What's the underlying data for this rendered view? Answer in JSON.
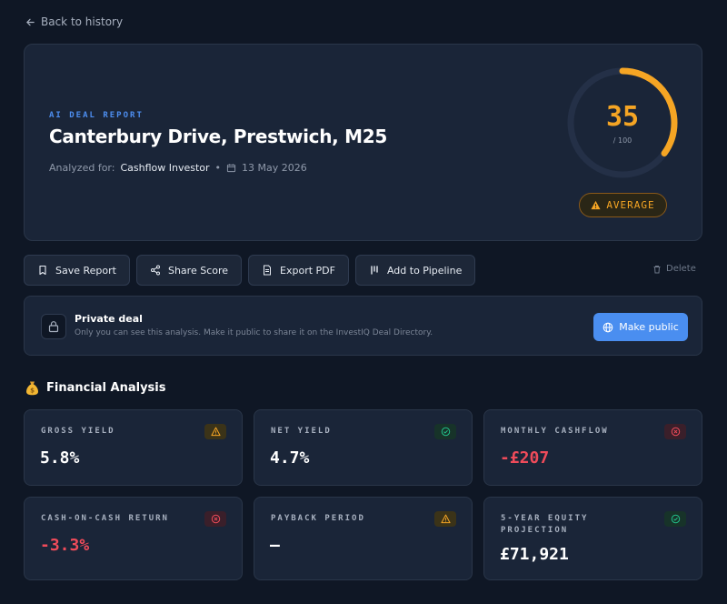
{
  "nav": {
    "back_label": "Back to history"
  },
  "report": {
    "eyebrow": "AI DEAL REPORT",
    "title": "Canterbury Drive, Prestwich, M25",
    "analyzed_for_label": "Analyzed for:",
    "investor_type": "Cashflow Investor",
    "date": "13 May 2026"
  },
  "score": {
    "value": "35",
    "max_label": "/ 100",
    "fraction": 0.35,
    "rating": "AVERAGE",
    "color": "#f5a524"
  },
  "toolbar": {
    "save": "Save Report",
    "share": "Share Score",
    "export": "Export PDF",
    "pipeline": "Add to Pipeline",
    "delete": "Delete"
  },
  "privacy": {
    "title": "Private deal",
    "description": "Only you can see this analysis. Make it public to share it on the InvestIQ Deal Directory.",
    "button": "Make public"
  },
  "financial": {
    "title": "Financial Analysis",
    "cards": [
      {
        "label": "GROSS YIELD",
        "value": "5.8%",
        "status": "warning"
      },
      {
        "label": "NET YIELD",
        "value": "4.7%",
        "status": "good"
      },
      {
        "label": "MONTHLY CASHFLOW",
        "value": "-£207",
        "status": "bad"
      },
      {
        "label": "CASH-ON-CASH RETURN",
        "value": "-3.3%",
        "status": "bad"
      },
      {
        "label": "PAYBACK PERIOD",
        "value": "—",
        "status": "warning"
      },
      {
        "label": "5-YEAR EQUITY PROJECTION",
        "value": "£71,921",
        "status": "good"
      }
    ]
  },
  "colors": {
    "accent": "#4a8ef0",
    "warning": "#f5a524",
    "good": "#22c08a",
    "bad": "#ef4b5a",
    "background": "#0f1725"
  }
}
